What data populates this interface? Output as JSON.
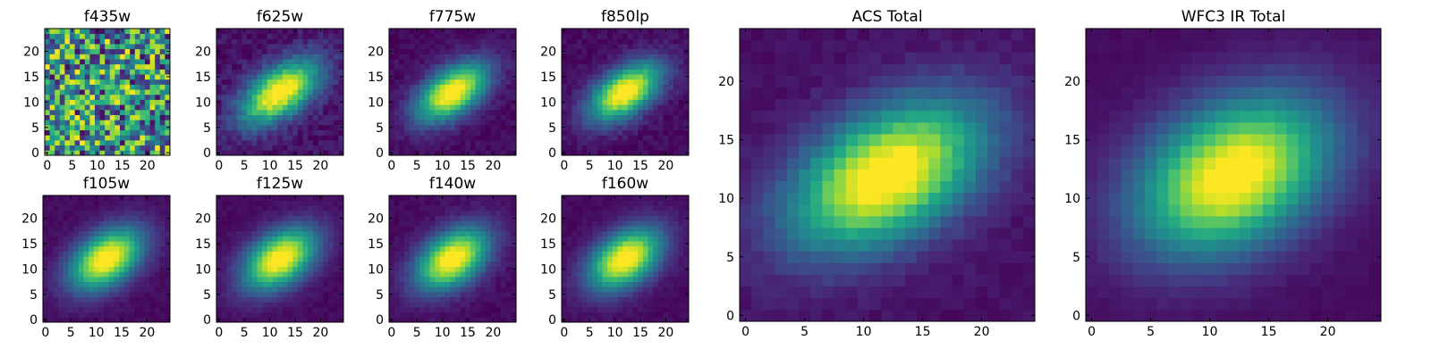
{
  "chart_data": [
    {
      "type": "heatmap",
      "title": "f435w",
      "pattern": "noise",
      "peak": [
        12,
        12
      ],
      "sigma": [
        6.5,
        3.3
      ],
      "angle_deg": 35,
      "noise": 1.0,
      "bg": 0.55,
      "xticks": [
        0,
        5,
        10,
        15,
        20
      ],
      "yticks": [
        0,
        5,
        10,
        15,
        20
      ],
      "xlim": [
        0,
        25
      ],
      "ylim": [
        0,
        25
      ],
      "colormap": "viridis",
      "grid": false
    },
    {
      "type": "heatmap",
      "title": "f625w",
      "pattern": "gaussian",
      "peak": [
        12,
        12
      ],
      "sigma": [
        6.0,
        3.2
      ],
      "angle_deg": 35,
      "noise": 0.13,
      "bg": 0.05,
      "xticks": [
        0,
        5,
        10,
        15,
        20
      ],
      "yticks": [
        0,
        5,
        10,
        15,
        20
      ],
      "xlim": [
        0,
        25
      ],
      "ylim": [
        0,
        25
      ],
      "colormap": "viridis",
      "grid": false
    },
    {
      "type": "heatmap",
      "title": "f775w",
      "pattern": "gaussian",
      "peak": [
        12,
        12
      ],
      "sigma": [
        5.5,
        3.0
      ],
      "angle_deg": 35,
      "noise": 0.08,
      "bg": 0.03,
      "xticks": [
        0,
        5,
        10,
        15,
        20
      ],
      "yticks": [
        0,
        5,
        10,
        15,
        20
      ],
      "xlim": [
        0,
        25
      ],
      "ylim": [
        0,
        25
      ],
      "colormap": "viridis",
      "grid": false
    },
    {
      "type": "heatmap",
      "title": "f850lp",
      "pattern": "gaussian",
      "peak": [
        12,
        12
      ],
      "sigma": [
        5.5,
        3.0
      ],
      "angle_deg": 35,
      "noise": 0.09,
      "bg": 0.03,
      "xticks": [
        0,
        5,
        10,
        15,
        20
      ],
      "yticks": [
        0,
        5,
        10,
        15,
        20
      ],
      "xlim": [
        0,
        25
      ],
      "ylim": [
        0,
        25
      ],
      "colormap": "viridis",
      "grid": false
    },
    {
      "type": "heatmap",
      "title": "f105w",
      "pattern": "gaussian",
      "peak": [
        12,
        12
      ],
      "sigma": [
        5.5,
        3.4
      ],
      "angle_deg": 35,
      "noise": 0.05,
      "bg": 0.03,
      "xticks": [
        0,
        5,
        10,
        15,
        20
      ],
      "yticks": [
        0,
        5,
        10,
        15,
        20
      ],
      "xlim": [
        0,
        25
      ],
      "ylim": [
        0,
        25
      ],
      "colormap": "viridis",
      "grid": false
    },
    {
      "type": "heatmap",
      "title": "f125w",
      "pattern": "gaussian",
      "peak": [
        12,
        12
      ],
      "sigma": [
        5.5,
        3.4
      ],
      "angle_deg": 35,
      "noise": 0.05,
      "bg": 0.03,
      "xticks": [
        0,
        5,
        10,
        15,
        20
      ],
      "yticks": [
        0,
        5,
        10,
        15,
        20
      ],
      "xlim": [
        0,
        25
      ],
      "ylim": [
        0,
        25
      ],
      "colormap": "viridis",
      "grid": false
    },
    {
      "type": "heatmap",
      "title": "f140w",
      "pattern": "gaussian",
      "peak": [
        12,
        12
      ],
      "sigma": [
        5.5,
        3.4
      ],
      "angle_deg": 35,
      "noise": 0.06,
      "bg": 0.03,
      "xticks": [
        0,
        5,
        10,
        15,
        20
      ],
      "yticks": [
        0,
        5,
        10,
        15,
        20
      ],
      "xlim": [
        0,
        25
      ],
      "ylim": [
        0,
        25
      ],
      "colormap": "viridis",
      "grid": false
    },
    {
      "type": "heatmap",
      "title": "f160w",
      "pattern": "gaussian",
      "peak": [
        12,
        12
      ],
      "sigma": [
        5.5,
        3.4
      ],
      "angle_deg": 35,
      "noise": 0.05,
      "bg": 0.03,
      "xticks": [
        0,
        5,
        10,
        15,
        20
      ],
      "yticks": [
        0,
        5,
        10,
        15,
        20
      ],
      "xlim": [
        0,
        25
      ],
      "ylim": [
        0,
        25
      ],
      "colormap": "viridis",
      "grid": false
    },
    {
      "type": "heatmap",
      "title": "ACS Total",
      "pattern": "gaussian",
      "peak": [
        12,
        12
      ],
      "sigma": [
        6.2,
        3.6
      ],
      "angle_deg": 30,
      "noise": 0.06,
      "bg": 0.04,
      "xticks": [
        0,
        5,
        10,
        15,
        20
      ],
      "yticks": [
        0,
        5,
        10,
        15,
        20
      ],
      "xlim": [
        0,
        25
      ],
      "ylim": [
        0,
        25
      ],
      "colormap": "viridis",
      "grid": false
    },
    {
      "type": "heatmap",
      "title": "WFC3 IR Total",
      "pattern": "gaussian",
      "peak": [
        12,
        12
      ],
      "sigma": [
        6.0,
        4.0
      ],
      "angle_deg": 30,
      "noise": 0.03,
      "bg": 0.03,
      "xticks": [
        0,
        5,
        10,
        15,
        20
      ],
      "yticks": [
        0,
        5,
        10,
        15,
        20
      ],
      "xlim": [
        0,
        25
      ],
      "ylim": [
        0,
        25
      ],
      "colormap": "viridis",
      "grid": false
    }
  ]
}
